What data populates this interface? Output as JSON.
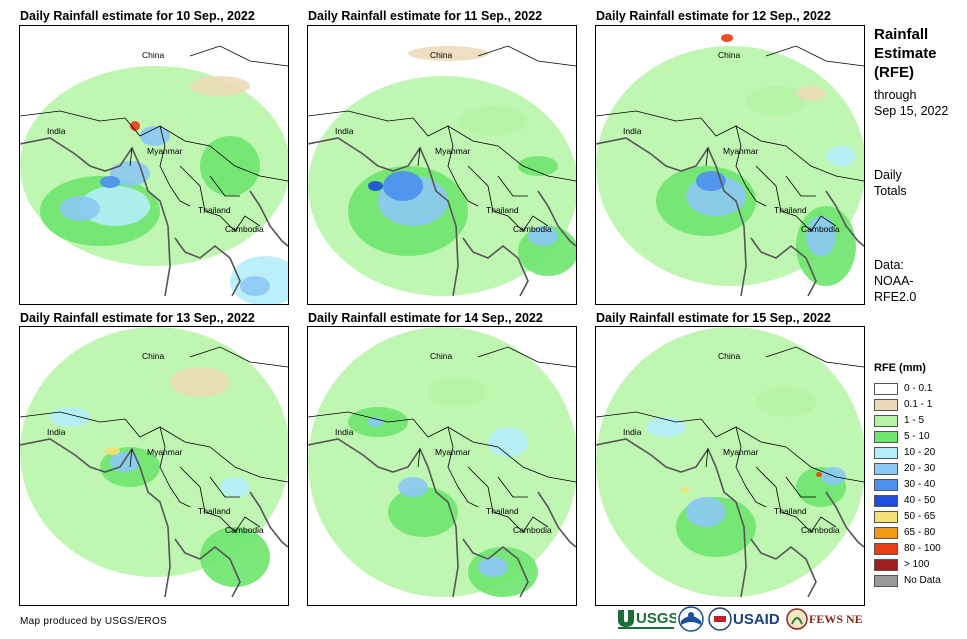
{
  "panels": [
    {
      "title": "Daily Rainfall estimate for 10 Sep., 2022",
      "labels": {
        "china": "China",
        "india": "India",
        "myanmar": "Myanmar",
        "thailand": "Thailand",
        "cambodia": "Cambodia"
      }
    },
    {
      "title": "Daily Rainfall estimate for 11 Sep., 2022",
      "labels": {
        "china": "China",
        "india": "India",
        "myanmar": "Myanmar",
        "thailand": "Thailand",
        "cambodia": "Cambodia"
      }
    },
    {
      "title": "Daily Rainfall estimate for 12 Sep., 2022",
      "labels": {
        "china": "China",
        "india": "India",
        "myanmar": "Myanmar",
        "thailand": "Thailand",
        "cambodia": "Cambodia"
      }
    },
    {
      "title": "Daily Rainfall estimate for 13 Sep., 2022",
      "labels": {
        "china": "China",
        "india": "India",
        "myanmar": "Myanmar",
        "thailand": "Thailand",
        "cambodia": "Cambodia"
      }
    },
    {
      "title": "Daily Rainfall estimate for 14 Sep., 2022",
      "labels": {
        "china": "China",
        "india": "India",
        "myanmar": "Myanmar",
        "thailand": "Thailand",
        "cambodia": "Cambodia"
      }
    },
    {
      "title": "Daily Rainfall estimate for 15 Sep., 2022",
      "labels": {
        "china": "China",
        "india": "India",
        "myanmar": "Myanmar",
        "thailand": "Thailand",
        "cambodia": "Cambodia"
      }
    }
  ],
  "sidebar": {
    "title_line1": "Rainfall",
    "title_line2": "Estimate",
    "title_line3": "(RFE)",
    "through": "through",
    "date": "Sep 15, 2022",
    "daily1": "Daily",
    "daily2": "Totals",
    "data1": "Data:",
    "data2": "NOAA-",
    "data3": "RFE2.0"
  },
  "legend": {
    "title": "RFE (mm)",
    "items": [
      {
        "label": "0 - 0.1",
        "color": "#ffffff"
      },
      {
        "label": "0.1 - 1",
        "color": "#ecd9b5"
      },
      {
        "label": "1 - 5",
        "color": "#b4f5a4"
      },
      {
        "label": "5 - 10",
        "color": "#6ee66e"
      },
      {
        "label": "10 - 20",
        "color": "#b4eefa"
      },
      {
        "label": "20 - 30",
        "color": "#8cc8f5"
      },
      {
        "label": "30 - 40",
        "color": "#4b8ff0"
      },
      {
        "label": "40 - 50",
        "color": "#1e4fdc"
      },
      {
        "label": "50 - 65",
        "color": "#f5e173"
      },
      {
        "label": "65 - 80",
        "color": "#f59a14"
      },
      {
        "label": "80 - 100",
        "color": "#eb3c14"
      },
      {
        "label": "> 100",
        "color": "#a01e1e"
      },
      {
        "label": "No Data",
        "color": "#999999"
      }
    ]
  },
  "footer": {
    "credit": "Map produced by USGS/EROS",
    "logos": [
      "USGS",
      "NOAA",
      "USAID",
      "FEWS NET"
    ]
  },
  "colors": {
    "coast": "#555555",
    "border": "#000000"
  }
}
